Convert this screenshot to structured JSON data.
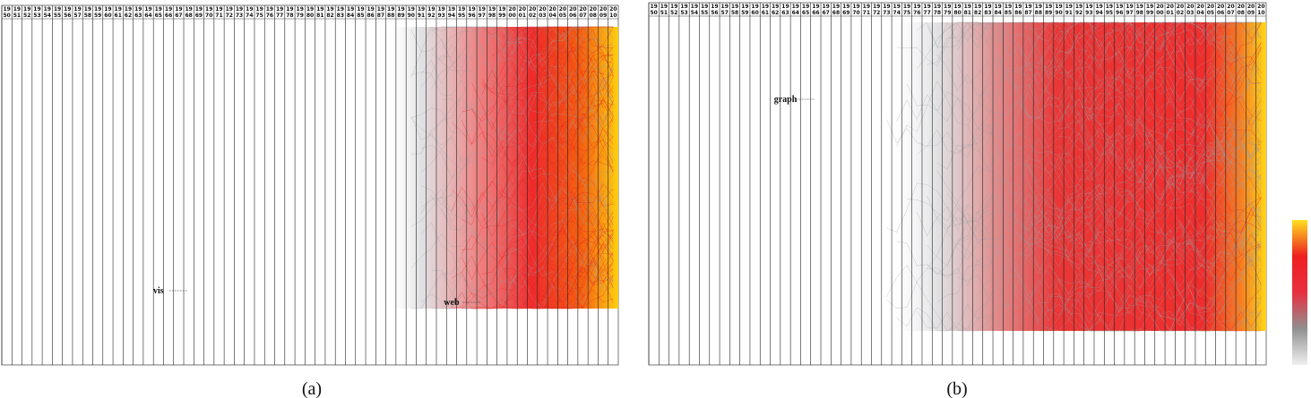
{
  "panels": [
    {
      "id": "a",
      "caption": "(a)",
      "years": [
        1950,
        1951,
        1952,
        1953,
        1954,
        1955,
        1956,
        1957,
        1958,
        1959,
        1960,
        1961,
        1962,
        1963,
        1964,
        1965,
        1966,
        1967,
        1968,
        1969,
        1970,
        1971,
        1972,
        1973,
        1974,
        1975,
        1976,
        1977,
        1978,
        1979,
        1980,
        1981,
        1982,
        1983,
        1984,
        1985,
        1986,
        1987,
        1988,
        1989,
        1990,
        1991,
        1992,
        1993,
        1994,
        1995,
        1996,
        1997,
        1998,
        1999,
        2000,
        2001,
        2002,
        2003,
        2004,
        2005,
        2006,
        2007,
        2008,
        2009,
        2010
      ],
      "labels": [
        {
          "text": "vis",
          "year": 1965
        },
        {
          "text": "web",
          "year": 1994
        }
      ]
    },
    {
      "id": "b",
      "caption": "(b)",
      "years": [
        1950,
        1951,
        1952,
        1953,
        1954,
        1955,
        1956,
        1957,
        1958,
        1959,
        1960,
        1961,
        1962,
        1963,
        1964,
        1965,
        1966,
        1967,
        1968,
        1969,
        1970,
        1971,
        1972,
        1973,
        1974,
        1975,
        1976,
        1977,
        1978,
        1979,
        1980,
        1981,
        1982,
        1983,
        1984,
        1985,
        1986,
        1987,
        1988,
        1989,
        1990,
        1991,
        1992,
        1993,
        1994,
        1995,
        1996,
        1997,
        1998,
        1999,
        2000,
        2001,
        2002,
        2003,
        2004,
        2005,
        2006,
        2007,
        2008,
        2009,
        2010
      ],
      "labels": [
        {
          "text": "graph",
          "year": 1963
        }
      ]
    }
  ],
  "colorbar": {
    "stops": [
      "#f0f0f0",
      "#909090",
      "#e83040",
      "#ee2020",
      "#ffe020"
    ]
  }
}
